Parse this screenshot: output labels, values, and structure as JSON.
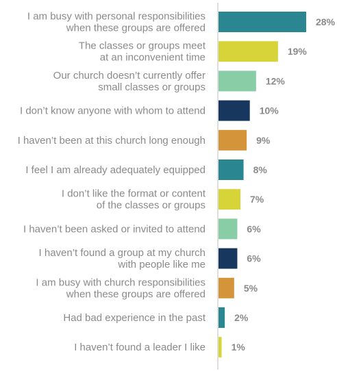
{
  "chart_data": {
    "type": "bar",
    "orientation": "horizontal",
    "categories": [
      [
        "I am busy with personal responsibilities",
        "when these groups are offered"
      ],
      [
        "The classes or groups meet",
        "at an inconvenient time"
      ],
      [
        "Our church doesn’t currently offer",
        "small classes or groups"
      ],
      [
        "I don’t know anyone with whom to attend"
      ],
      [
        "I haven’t been at this church long enough"
      ],
      [
        "I feel I am already adequately equipped"
      ],
      [
        "I don’t like the format or content",
        "of the classes or groups"
      ],
      [
        "I haven’t been asked or invited to attend"
      ],
      [
        "I haven’t found a group at my church",
        "with people like me"
      ],
      [
        "I am busy with church responsibilities",
        "when these groups are offered"
      ],
      [
        "Had bad experience in the past"
      ],
      [
        "I haven’t found a leader I like"
      ]
    ],
    "values": [
      28,
      19,
      12,
      10,
      9,
      8,
      7,
      6,
      6,
      5,
      2,
      1
    ],
    "value_labels": [
      "28%",
      "19%",
      "12%",
      "10%",
      "9%",
      "8%",
      "7%",
      "6%",
      "6%",
      "5%",
      "2%",
      "1%"
    ],
    "colors": [
      "#2a8690",
      "#d7d43a",
      "#88cda6",
      "#17375f",
      "#d4953a",
      "#2a8690",
      "#d7d43a",
      "#88cda6",
      "#17375f",
      "#d4953a",
      "#2a8690",
      "#d7d43a"
    ],
    "axis_color": "#bdbdbd",
    "label_color": "#8a8a8a",
    "grid": false,
    "legend": "none"
  }
}
